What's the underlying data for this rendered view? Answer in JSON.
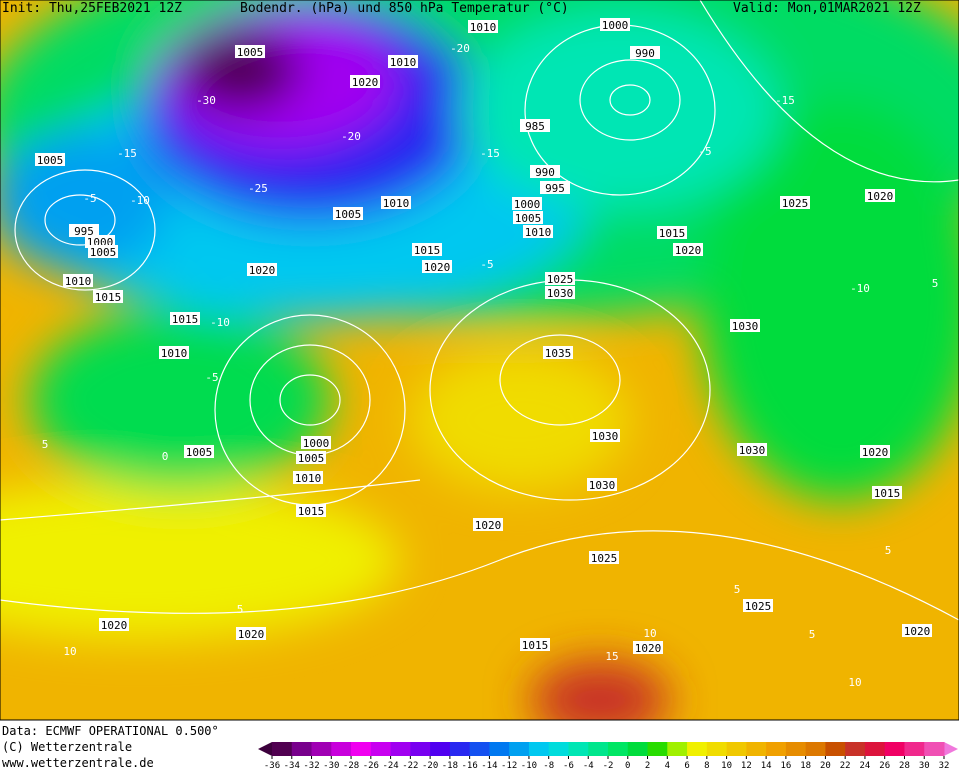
{
  "header": {
    "init": "Init: Thu,25FEB2021 12Z",
    "title": "Bodendr. (hPa) und 850 hPa Temperatur (°C)",
    "valid": "Valid: Mon,01MAR2021 12Z"
  },
  "footer": {
    "data": "Data: ECMWF OPERATIONAL 0.500°",
    "copyright": "(C) Wetterzentrale",
    "url": "www.wetterzentrale.de"
  },
  "isobar_labels": [
    1005,
    1010,
    1020,
    1010,
    1000,
    990,
    985,
    990,
    995,
    1000,
    1005,
    1010,
    1005,
    995,
    1000,
    1005,
    1010,
    1015,
    1015,
    1010,
    1020,
    1005,
    1010,
    1015,
    1020,
    1015,
    1020,
    1025,
    1030,
    1035,
    1030,
    1025,
    1020,
    1030,
    1030,
    1030,
    1020,
    1015,
    1000,
    1005,
    1010,
    1015,
    1005,
    1020,
    1025,
    1025,
    1020,
    1020,
    1015,
    1020,
    1020
  ],
  "temperature_labels": [
    -20,
    -30,
    -25,
    -20,
    -15,
    -10,
    -5,
    -15,
    -15,
    -10,
    -5,
    0,
    -5,
    5,
    5,
    10,
    5,
    5,
    10,
    15,
    10,
    -10,
    5,
    5,
    -5
  ],
  "colorbar": {
    "ticks": [
      -36,
      -34,
      -32,
      -30,
      -28,
      -26,
      -24,
      -22,
      -20,
      -18,
      -16,
      -14,
      -12,
      -10,
      -8,
      -6,
      -4,
      -2,
      0,
      2,
      4,
      6,
      8,
      10,
      12,
      14,
      16,
      18,
      20,
      22,
      24,
      26,
      28,
      30,
      32
    ],
    "colors": [
      "#500050",
      "#78008c",
      "#a000b4",
      "#c800dc",
      "#f000f0",
      "#c800f0",
      "#a000f0",
      "#7800f0",
      "#5000f0",
      "#2828f0",
      "#1450f0",
      "#0078f0",
      "#00a0f0",
      "#00c8f0",
      "#00dcdc",
      "#00e6b4",
      "#00e68c",
      "#00e664",
      "#00dc3c",
      "#28dc00",
      "#a0f000",
      "#f0f000",
      "#f0dc00",
      "#f0c800",
      "#f0b400",
      "#f0a000",
      "#e68c00",
      "#dc7800",
      "#c85000",
      "#c83228",
      "#dc143c",
      "#f00064",
      "#f0288c",
      "#f050b4"
    ]
  }
}
